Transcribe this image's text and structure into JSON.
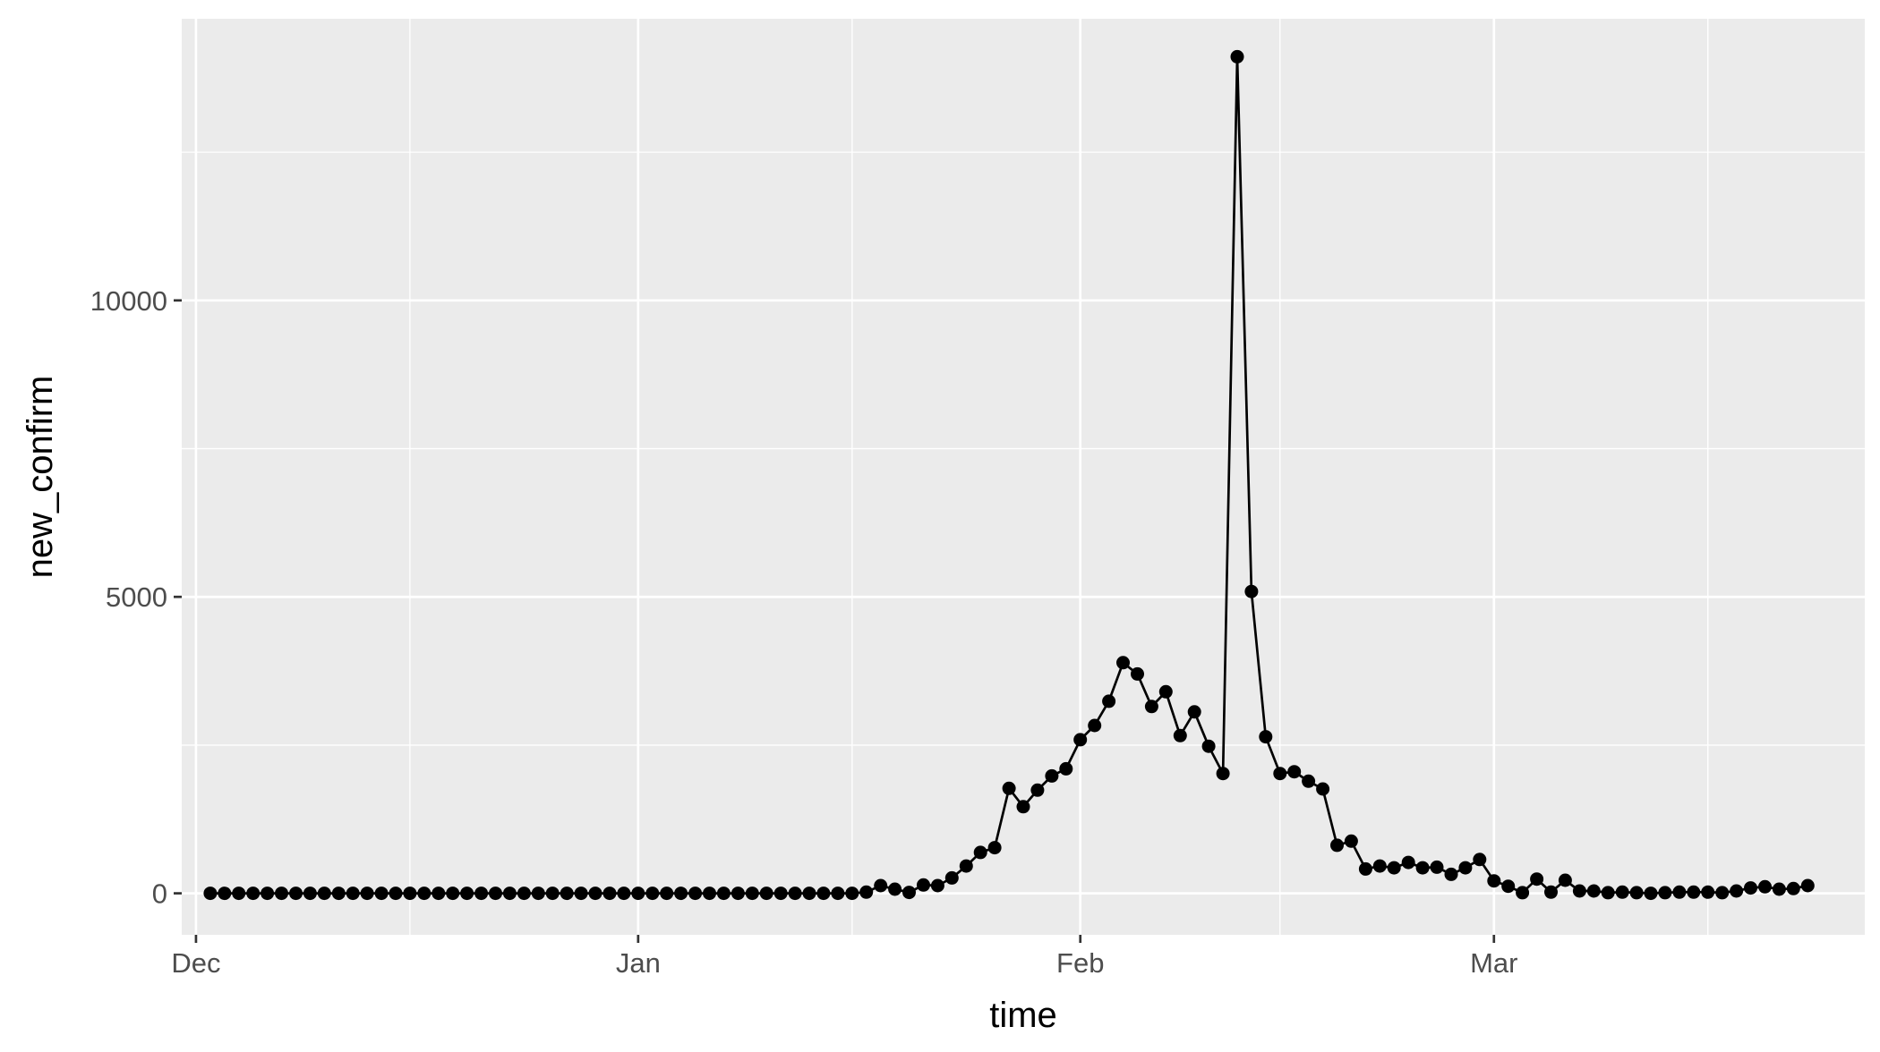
{
  "chart_data": {
    "type": "line",
    "title": "",
    "xlabel": "time",
    "ylabel": "new_confirm",
    "x_axis": {
      "kind": "date",
      "range": [
        "2019-11-30",
        "2020-03-27"
      ],
      "ticks": [
        {
          "label": "Dec",
          "value": "2019-12-01"
        },
        {
          "label": "Jan",
          "value": "2020-01-01"
        },
        {
          "label": "Feb",
          "value": "2020-02-01"
        },
        {
          "label": "Mar",
          "value": "2020-03-01"
        }
      ],
      "minor_ticks": [
        "2019-12-16",
        "2020-01-16",
        "2020-02-15",
        "2020-03-16"
      ]
    },
    "y_axis": {
      "range": [
        -700,
        14750
      ],
      "ticks": [
        {
          "label": "0",
          "value": 0
        },
        {
          "label": "5000",
          "value": 5000
        },
        {
          "label": "10000",
          "value": 10000
        }
      ],
      "minor_ticks": [
        2500,
        7500,
        12500
      ]
    },
    "grid": true,
    "legend": "none",
    "series": [
      {
        "points": [
          {
            "x": "2019-12-02",
            "y": 0
          },
          {
            "x": "2019-12-03",
            "y": 0
          },
          {
            "x": "2019-12-04",
            "y": 0
          },
          {
            "x": "2019-12-05",
            "y": 0
          },
          {
            "x": "2019-12-06",
            "y": 0
          },
          {
            "x": "2019-12-07",
            "y": 0
          },
          {
            "x": "2019-12-08",
            "y": 0
          },
          {
            "x": "2019-12-09",
            "y": 0
          },
          {
            "x": "2019-12-10",
            "y": 0
          },
          {
            "x": "2019-12-11",
            "y": 0
          },
          {
            "x": "2019-12-12",
            "y": 0
          },
          {
            "x": "2019-12-13",
            "y": 0
          },
          {
            "x": "2019-12-14",
            "y": 0
          },
          {
            "x": "2019-12-15",
            "y": 0
          },
          {
            "x": "2019-12-16",
            "y": 0
          },
          {
            "x": "2019-12-17",
            "y": 0
          },
          {
            "x": "2019-12-18",
            "y": 0
          },
          {
            "x": "2019-12-19",
            "y": 0
          },
          {
            "x": "2019-12-20",
            "y": 0
          },
          {
            "x": "2019-12-21",
            "y": 0
          },
          {
            "x": "2019-12-22",
            "y": 0
          },
          {
            "x": "2019-12-23",
            "y": 0
          },
          {
            "x": "2019-12-24",
            "y": 0
          },
          {
            "x": "2019-12-25",
            "y": 0
          },
          {
            "x": "2019-12-26",
            "y": 0
          },
          {
            "x": "2019-12-27",
            "y": 0
          },
          {
            "x": "2019-12-28",
            "y": 0
          },
          {
            "x": "2019-12-29",
            "y": 0
          },
          {
            "x": "2019-12-30",
            "y": 0
          },
          {
            "x": "2019-12-31",
            "y": 0
          },
          {
            "x": "2020-01-01",
            "y": 0
          },
          {
            "x": "2020-01-02",
            "y": 0
          },
          {
            "x": "2020-01-03",
            "y": 0
          },
          {
            "x": "2020-01-04",
            "y": 0
          },
          {
            "x": "2020-01-05",
            "y": 0
          },
          {
            "x": "2020-01-06",
            "y": 0
          },
          {
            "x": "2020-01-07",
            "y": 0
          },
          {
            "x": "2020-01-08",
            "y": 0
          },
          {
            "x": "2020-01-09",
            "y": 0
          },
          {
            "x": "2020-01-10",
            "y": 0
          },
          {
            "x": "2020-01-11",
            "y": 0
          },
          {
            "x": "2020-01-12",
            "y": 0
          },
          {
            "x": "2020-01-13",
            "y": 0
          },
          {
            "x": "2020-01-14",
            "y": 0
          },
          {
            "x": "2020-01-15",
            "y": 0
          },
          {
            "x": "2020-01-16",
            "y": 0
          },
          {
            "x": "2020-01-17",
            "y": 20
          },
          {
            "x": "2020-01-18",
            "y": 130
          },
          {
            "x": "2020-01-19",
            "y": 70
          },
          {
            "x": "2020-01-20",
            "y": 15
          },
          {
            "x": "2020-01-21",
            "y": 140
          },
          {
            "x": "2020-01-22",
            "y": 130
          },
          {
            "x": "2020-01-23",
            "y": 260
          },
          {
            "x": "2020-01-24",
            "y": 460
          },
          {
            "x": "2020-01-25",
            "y": 690
          },
          {
            "x": "2020-01-26",
            "y": 770
          },
          {
            "x": "2020-01-27",
            "y": 1770
          },
          {
            "x": "2020-01-28",
            "y": 1460
          },
          {
            "x": "2020-01-29",
            "y": 1740
          },
          {
            "x": "2020-01-30",
            "y": 1980
          },
          {
            "x": "2020-01-31",
            "y": 2100
          },
          {
            "x": "2020-02-01",
            "y": 2590
          },
          {
            "x": "2020-02-02",
            "y": 2830
          },
          {
            "x": "2020-02-03",
            "y": 3240
          },
          {
            "x": "2020-02-04",
            "y": 3890
          },
          {
            "x": "2020-02-05",
            "y": 3700
          },
          {
            "x": "2020-02-06",
            "y": 3150
          },
          {
            "x": "2020-02-07",
            "y": 3400
          },
          {
            "x": "2020-02-08",
            "y": 2660
          },
          {
            "x": "2020-02-09",
            "y": 3060
          },
          {
            "x": "2020-02-10",
            "y": 2480
          },
          {
            "x": "2020-02-11",
            "y": 2020
          },
          {
            "x": "2020-02-12",
            "y": 14110
          },
          {
            "x": "2020-02-13",
            "y": 5090
          },
          {
            "x": "2020-02-14",
            "y": 2640
          },
          {
            "x": "2020-02-15",
            "y": 2020
          },
          {
            "x": "2020-02-16",
            "y": 2050
          },
          {
            "x": "2020-02-17",
            "y": 1890
          },
          {
            "x": "2020-02-18",
            "y": 1760
          },
          {
            "x": "2020-02-19",
            "y": 810
          },
          {
            "x": "2020-02-20",
            "y": 880
          },
          {
            "x": "2020-02-21",
            "y": 410
          },
          {
            "x": "2020-02-22",
            "y": 460
          },
          {
            "x": "2020-02-23",
            "y": 430
          },
          {
            "x": "2020-02-24",
            "y": 520
          },
          {
            "x": "2020-02-25",
            "y": 430
          },
          {
            "x": "2020-02-26",
            "y": 440
          },
          {
            "x": "2020-02-27",
            "y": 320
          },
          {
            "x": "2020-02-28",
            "y": 430
          },
          {
            "x": "2020-02-29",
            "y": 570
          },
          {
            "x": "2020-03-01",
            "y": 210
          },
          {
            "x": "2020-03-02",
            "y": 120
          },
          {
            "x": "2020-03-03",
            "y": 10
          },
          {
            "x": "2020-03-04",
            "y": 240
          },
          {
            "x": "2020-03-05",
            "y": 20
          },
          {
            "x": "2020-03-06",
            "y": 220
          },
          {
            "x": "2020-03-07",
            "y": 40
          },
          {
            "x": "2020-03-08",
            "y": 40
          },
          {
            "x": "2020-03-09",
            "y": 10
          },
          {
            "x": "2020-03-10",
            "y": 20
          },
          {
            "x": "2020-03-11",
            "y": 10
          },
          {
            "x": "2020-03-12",
            "y": 0
          },
          {
            "x": "2020-03-13",
            "y": 10
          },
          {
            "x": "2020-03-14",
            "y": 20
          },
          {
            "x": "2020-03-15",
            "y": 20
          },
          {
            "x": "2020-03-16",
            "y": 20
          },
          {
            "x": "2020-03-17",
            "y": 10
          },
          {
            "x": "2020-03-18",
            "y": 40
          },
          {
            "x": "2020-03-19",
            "y": 90
          },
          {
            "x": "2020-03-20",
            "y": 110
          },
          {
            "x": "2020-03-21",
            "y": 70
          },
          {
            "x": "2020-03-22",
            "y": 80
          },
          {
            "x": "2020-03-23",
            "y": 130
          }
        ]
      }
    ]
  }
}
